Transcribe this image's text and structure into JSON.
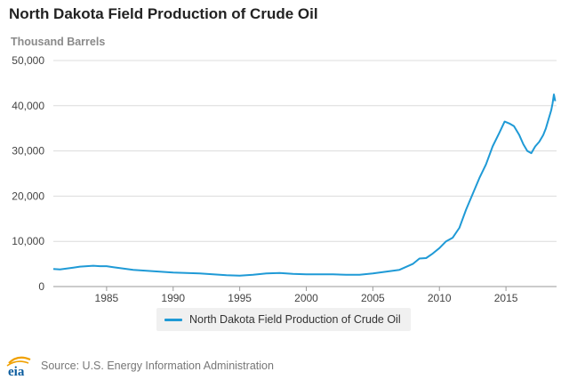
{
  "title": "North Dakota Field Production of Crude Oil",
  "unit_label": "Thousand Barrels",
  "source": "Source: U.S. Energy Information Administration",
  "logo_text": "eia",
  "colors": {
    "series": "#1f9ad6",
    "grid": "#dcdcdc",
    "logo_orange": "#f0a000",
    "logo_blue": "#0b5c9e"
  },
  "chart_data": {
    "type": "line",
    "title": "North Dakota Field Production of Crude Oil",
    "ylabel": "Thousand Barrels",
    "xlabel": "",
    "xlim": [
      1981,
      2018.8
    ],
    "ylim": [
      0,
      50000
    ],
    "yticks": [
      0,
      10000,
      20000,
      30000,
      40000,
      50000
    ],
    "ytick_labels": [
      "0",
      "10,000",
      "20,000",
      "30,000",
      "40,000",
      "50,000"
    ],
    "xticks": [
      1985,
      1990,
      1995,
      2000,
      2005,
      2010,
      2015
    ],
    "xtick_labels": [
      "1985",
      "1990",
      "1995",
      "2000",
      "2005",
      "2010",
      "2015"
    ],
    "grid": "horizontal",
    "legend_position": "bottom",
    "series": [
      {
        "name": "North Dakota Field Production of Crude Oil",
        "x": [
          1981.0,
          1981.5,
          1982.0,
          1982.5,
          1983.0,
          1983.5,
          1984.0,
          1984.5,
          1985.0,
          1985.5,
          1986.0,
          1986.5,
          1987.0,
          1988.0,
          1989.0,
          1990.0,
          1991.0,
          1992.0,
          1993.0,
          1994.0,
          1995.0,
          1996.0,
          1997.0,
          1998.0,
          1999.0,
          2000.0,
          2001.0,
          2002.0,
          2003.0,
          2004.0,
          2005.0,
          2006.0,
          2007.0,
          2008.0,
          2008.5,
          2009.0,
          2009.5,
          2010.0,
          2010.5,
          2011.0,
          2011.5,
          2012.0,
          2012.5,
          2013.0,
          2013.5,
          2014.0,
          2014.5,
          2014.9,
          2015.3,
          2015.6,
          2016.0,
          2016.3,
          2016.6,
          2016.9,
          2017.2,
          2017.5,
          2017.8,
          2018.0,
          2018.2,
          2018.4,
          2018.5,
          2018.6,
          2018.7
        ],
        "values": [
          3900,
          3800,
          4000,
          4200,
          4400,
          4500,
          4600,
          4500,
          4500,
          4300,
          4100,
          3900,
          3700,
          3500,
          3300,
          3100,
          3000,
          2900,
          2700,
          2500,
          2400,
          2600,
          2900,
          3000,
          2800,
          2700,
          2700,
          2700,
          2600,
          2600,
          2900,
          3300,
          3700,
          5000,
          6200,
          6300,
          7300,
          8500,
          10000,
          10800,
          13000,
          17000,
          20500,
          24000,
          27000,
          31000,
          34000,
          36500,
          36000,
          35500,
          33500,
          31500,
          30000,
          29500,
          31000,
          32000,
          33500,
          35000,
          37000,
          39000,
          40500,
          42500,
          41000
        ]
      }
    ]
  },
  "legend": {
    "label": "North Dakota Field Production of Crude Oil"
  }
}
